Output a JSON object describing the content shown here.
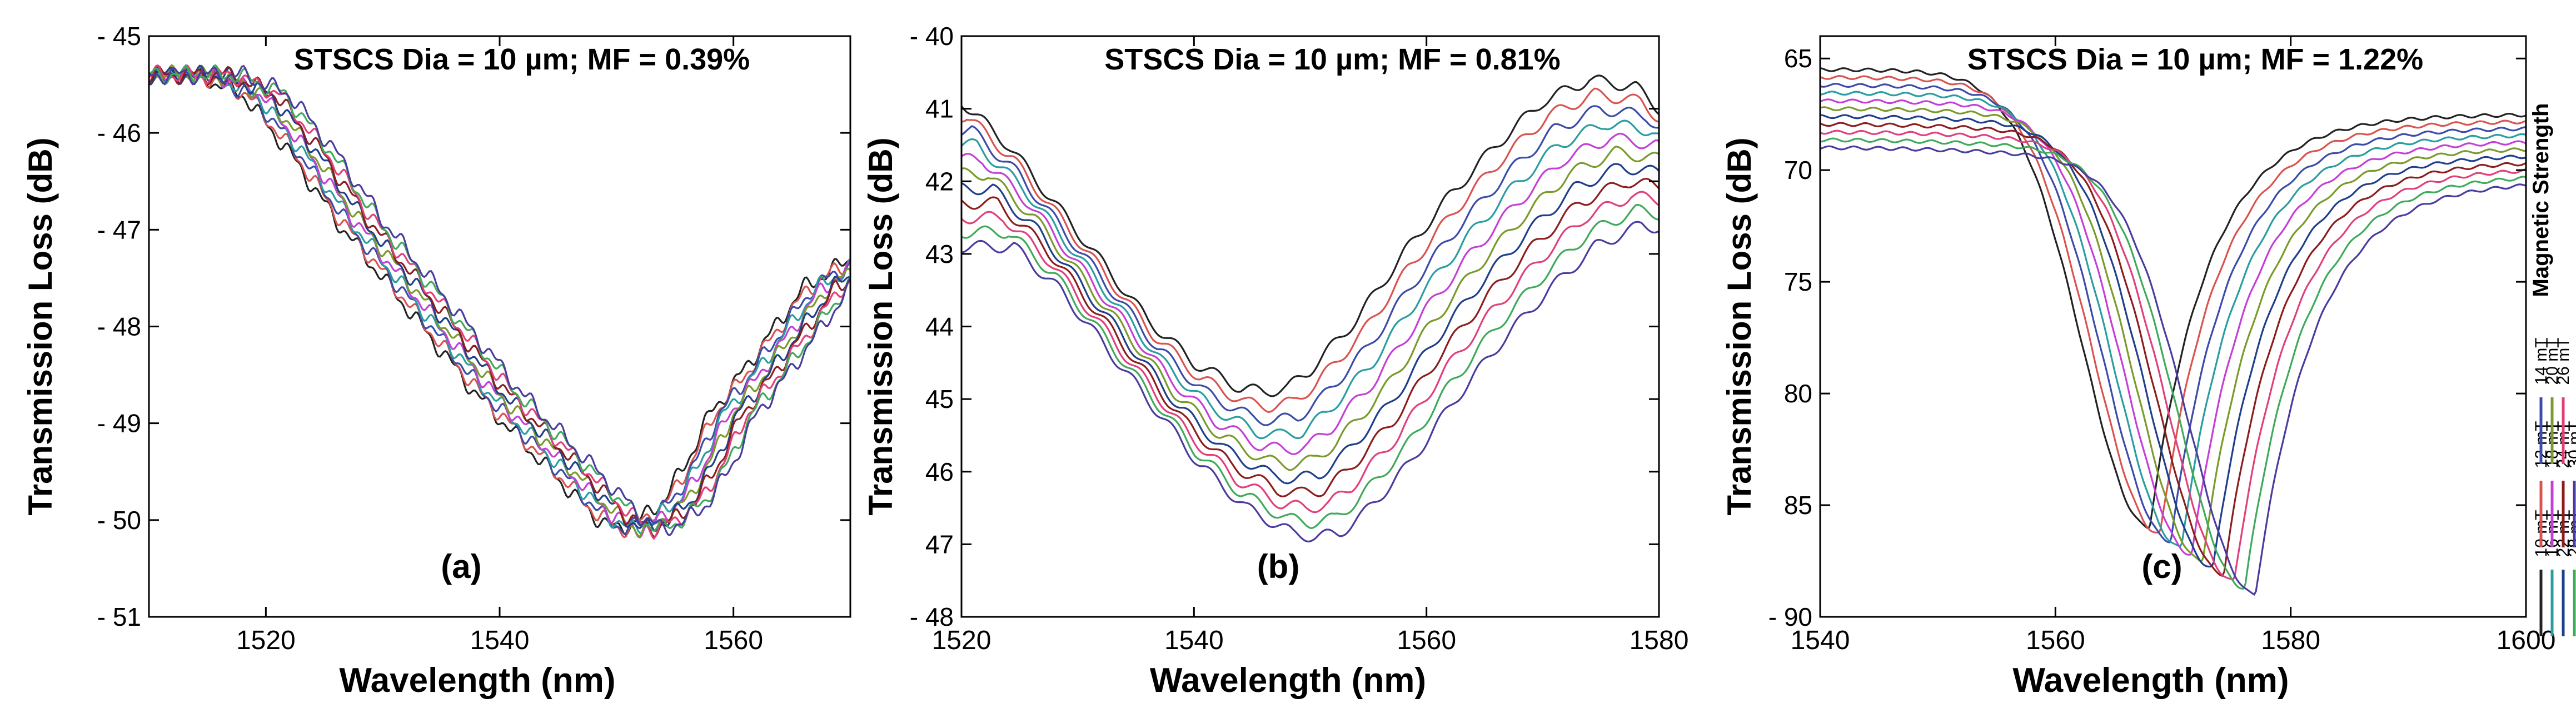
{
  "chart_data": [
    {
      "type": "line",
      "panel": "(a)",
      "title": "STSCS Dia = 10 µm; MF = 0.39%",
      "xlabel": "Wavelength (nm)",
      "ylabel": "Transmission Loss (dB)",
      "xlim": [
        1510,
        1570
      ],
      "ylim": [
        -51,
        -45
      ],
      "xticks": [
        1520,
        1540,
        1560
      ],
      "xtick_labels": [
        "1520",
        "1540",
        "1560"
      ],
      "yticks": [
        -45,
        -46,
        -47,
        -48,
        -49,
        -50,
        -51
      ],
      "ytick_labels": [
        "- 45",
        "- 46",
        "- 47",
        "- 48",
        "- 49",
        "- 50",
        "- 51"
      ],
      "series_count": 11,
      "shift_per_series_nm": 0.4,
      "base_curve": {
        "x": [
          1510,
          1514,
          1518,
          1522,
          1526,
          1530,
          1534,
          1538,
          1542,
          1546,
          1548,
          1550,
          1552,
          1554,
          1556,
          1558,
          1560,
          1563,
          1566,
          1570
        ],
        "y": [
          -45.4,
          -45.4,
          -45.6,
          -46.2,
          -46.9,
          -47.5,
          -48.1,
          -48.7,
          -49.2,
          -49.7,
          -49.95,
          -50.1,
          -50.0,
          -49.8,
          -49.4,
          -48.9,
          -48.6,
          -48.1,
          -47.6,
          -47.3
        ]
      }
    },
    {
      "type": "line",
      "panel": "(b)",
      "title": "STSCS Dia = 10 µm; MF = 0.81%",
      "xlabel": "Wavelength (nm)",
      "ylabel": "Transmission Loss (dB)",
      "xlim": [
        1520,
        1580
      ],
      "ylim": [
        -48,
        -40
      ],
      "xticks": [
        1520,
        1540,
        1560,
        1580
      ],
      "xtick_labels": [
        "1520",
        "1540",
        "1560",
        "1580"
      ],
      "yticks": [
        -40,
        -41,
        -42,
        -43,
        -44,
        -45,
        -46,
        -47,
        -48
      ],
      "ytick_labels": [
        "- 40",
        "41",
        "42",
        "43",
        "44",
        "45",
        "46",
        "47",
        "- 48"
      ],
      "series_count": 11,
      "offset_step_db": 0.2,
      "shift_per_series_nm": 0.45,
      "base_curve": {
        "x": [
          1520,
          1524,
          1528,
          1532,
          1536,
          1540,
          1544,
          1546,
          1548,
          1550,
          1554,
          1558,
          1562,
          1566,
          1570,
          1574,
          1578,
          1580
        ],
        "y": [
          -40.9,
          -41.5,
          -42.3,
          -43.1,
          -43.9,
          -44.5,
          -44.85,
          -44.9,
          -44.85,
          -44.6,
          -43.9,
          -43.0,
          -42.2,
          -41.5,
          -40.9,
          -40.6,
          -40.7,
          -41.0
        ]
      }
    },
    {
      "type": "line",
      "panel": "(c)",
      "title": "STSCS Dia = 10 µm; MF = 1.22%",
      "xlabel": "Wavelength (nm)",
      "ylabel": "Transmission Loss (dB)",
      "xlim": [
        1540,
        1600
      ],
      "ylim": [
        -90,
        -64
      ],
      "xticks": [
        1540,
        1560,
        1580,
        1600
      ],
      "xtick_labels": [
        "1540",
        "1560",
        "1580",
        "1600"
      ],
      "yticks": [
        -65,
        -70,
        -75,
        -80,
        -85,
        -90
      ],
      "ytick_labels": [
        "65",
        "70",
        "75",
        "80",
        "85",
        "- 90"
      ],
      "series_count": 11,
      "shift_per_series_nm": 0.9,
      "dip_depth_range_db": [
        -86,
        -89
      ]
    }
  ],
  "legend": {
    "title": "Magnetic Strength",
    "entries": [
      {
        "label": "10 mT",
        "color": "#222222"
      },
      {
        "label": "12 mT",
        "color": "#d9534f"
      },
      {
        "label": "14 mT",
        "color": "#3b4ba8"
      },
      {
        "label": "16 mT",
        "color": "#2a9da0"
      },
      {
        "label": "18 mT",
        "color": "#c43fd6"
      },
      {
        "label": "20 mT",
        "color": "#7a9a2a"
      },
      {
        "label": "22 mT",
        "color": "#1f3f8a"
      },
      {
        "label": "24 mT",
        "color": "#8b1d1d"
      },
      {
        "label": "26 mT",
        "color": "#e0407a"
      },
      {
        "label": "28 mT",
        "color": "#3faa5a"
      },
      {
        "label": "30 mT",
        "color": "#4a3c9e"
      }
    ]
  }
}
